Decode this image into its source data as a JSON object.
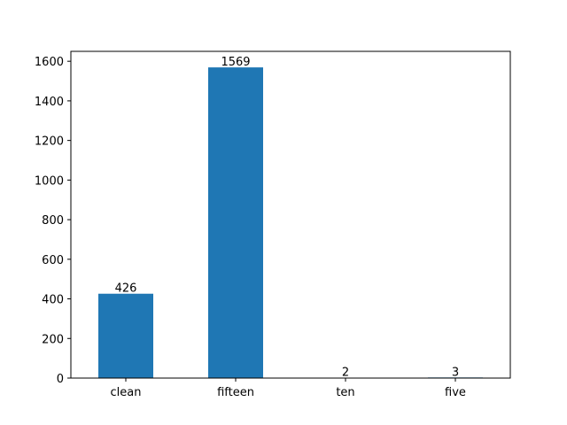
{
  "chart_data": {
    "type": "bar",
    "categories": [
      "clean",
      "fifteen",
      "ten",
      "five"
    ],
    "values": [
      426,
      1569,
      2,
      3
    ],
    "data_labels": [
      "426",
      "1569",
      "2",
      "3"
    ],
    "title": "",
    "xlabel": "",
    "ylabel": "",
    "ylim": [
      0,
      1650
    ],
    "yticks": [
      0,
      200,
      400,
      600,
      800,
      1000,
      1200,
      1400,
      1600
    ],
    "ytick_labels": [
      "0",
      "200",
      "400",
      "600",
      "800",
      "1000",
      "1200",
      "1400",
      "1600"
    ],
    "grid": false,
    "legend": "none",
    "bar_color": "#1f77b4"
  }
}
